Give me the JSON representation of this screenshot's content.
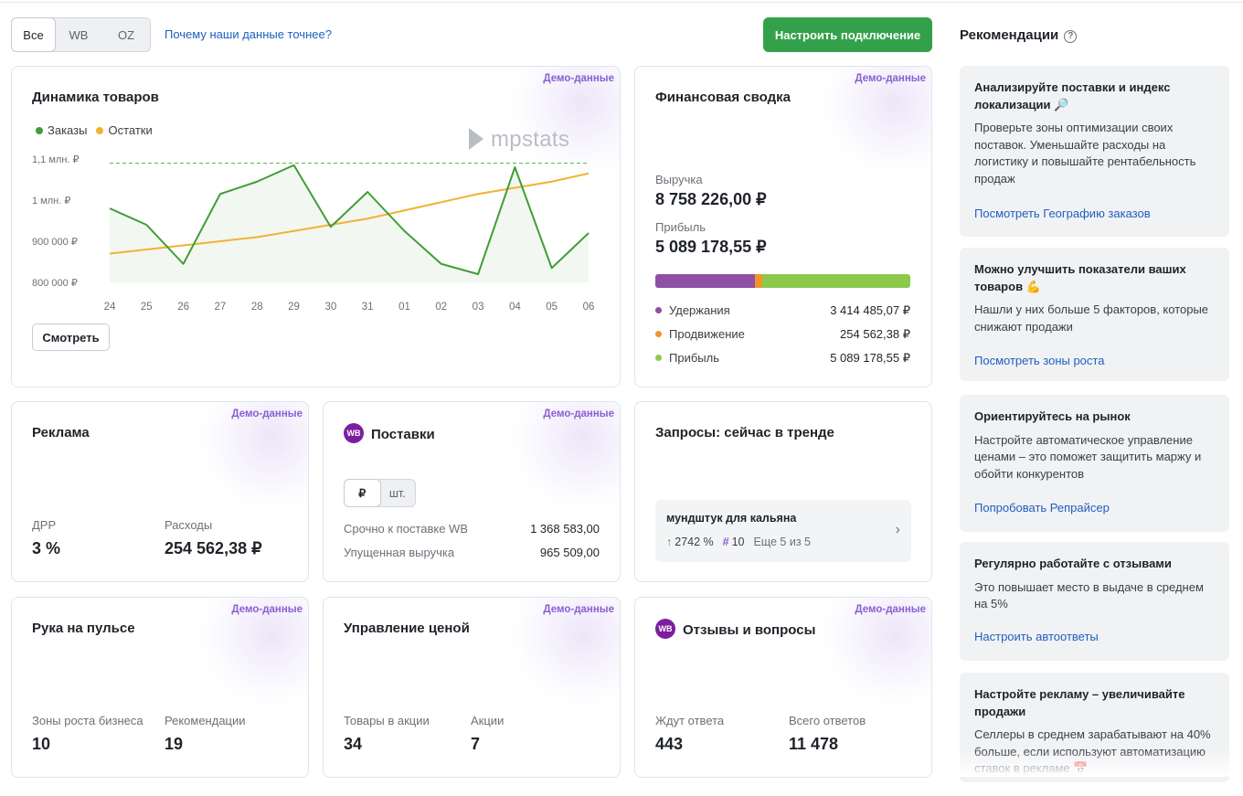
{
  "filters": {
    "tabs": [
      "Все",
      "WB",
      "OZ"
    ],
    "active": "Все"
  },
  "why_link": "Почему наши данные точнее?",
  "connect_button": "Настроить подключение",
  "demo_label": "Демо-данные",
  "dynamics": {
    "title": "Динамика товаров",
    "legend": {
      "orders": "Заказы",
      "stock": "Остатки"
    },
    "watermark": "mpstats",
    "view_button": "Смотреть",
    "colors": {
      "orders": "#3f9e35",
      "stock": "#f2b233"
    }
  },
  "chart_data": {
    "type": "line",
    "x": [
      "24",
      "25",
      "26",
      "27",
      "28",
      "29",
      "30",
      "31",
      "01",
      "02",
      "03",
      "04",
      "05",
      "06"
    ],
    "y_ticks": [
      "1,1 млн. ₽",
      "1 млн. ₽",
      "900 000 ₽",
      "800 000 ₽"
    ],
    "y_tick_values": [
      1100000,
      1000000,
      900000,
      800000
    ],
    "ylim": [
      800000,
      1100000
    ],
    "reference_line": 1090000,
    "series": [
      {
        "name": "Заказы",
        "values": [
          980000,
          940000,
          845000,
          1015000,
          1045000,
          1085000,
          935000,
          1020000,
          925000,
          845000,
          820000,
          1080000,
          835000,
          920000
        ]
      },
      {
        "name": "Остатки",
        "values": [
          870000,
          880000,
          890000,
          900000,
          910000,
          925000,
          940000,
          955000,
          975000,
          995000,
          1015000,
          1030000,
          1045000,
          1065000
        ]
      }
    ]
  },
  "finance": {
    "title": "Финансовая сводка",
    "revenue_label": "Выручка",
    "revenue": "8 758 226,00 ₽",
    "profit_label": "Прибыль",
    "profit": "5 089 178,55 ₽",
    "breakdown": [
      {
        "name": "Удержания",
        "value": "3 414 485,07 ₽",
        "share": 0.39,
        "color": "#8e4fa6"
      },
      {
        "name": "Продвижение",
        "value": "254 562,38 ₽",
        "share": 0.029,
        "color": "#f0952a"
      },
      {
        "name": "Прибыль",
        "value": "5 089 178,55 ₽",
        "share": 0.581,
        "color": "#8cc94b"
      }
    ]
  },
  "ads": {
    "title": "Реклама",
    "drr_label": "ДРР",
    "drr": "3 %",
    "spend_label": "Расходы",
    "spend": "254 562,38 ₽"
  },
  "supplies": {
    "badge": "WB",
    "title": "Поставки",
    "units": [
      "₽",
      "шт."
    ],
    "rows": [
      {
        "name": "Срочно к поставке WB",
        "value": "1 368 583,00"
      },
      {
        "name": "Упущенная выручка",
        "value": "965 509,00"
      }
    ]
  },
  "trends": {
    "title": "Запросы: сейчас в тренде",
    "query": "мундштук для кальяна",
    "growth": "2742 %",
    "rank": "10",
    "more": "Еще 5 из 5"
  },
  "pulse": {
    "title": "Рука на пульсе",
    "zones_label": "Зоны роста бизнеса",
    "zones": "10",
    "recs_label": "Рекомендации",
    "recs": "19"
  },
  "pricing": {
    "title": "Управление ценой",
    "promo_items_label": "Товары в акции",
    "promo_items": "34",
    "promos_label": "Акции",
    "promos": "7"
  },
  "reviews": {
    "badge": "WB",
    "title": "Отзывы и вопросы",
    "waiting_label": "Ждут ответа",
    "waiting": "443",
    "total_label": "Всего ответов",
    "total": "11 478"
  },
  "recommendations": {
    "title": "Рекомендации",
    "help": "?",
    "items": [
      {
        "title": "Анализируйте поставки и индекс локализации 🔎",
        "text": "Проверьте зоны оптимизации своих поставок. Уменьшайте расходы на логистику и повышайте рентабельность продаж",
        "link": "Посмотреть Географию заказов"
      },
      {
        "title": "Можно улучшить показатели ваших товаров 💪",
        "text": "Нашли у них больше 5 факторов, которые снижают продажи",
        "link": "Посмотреть зоны роста"
      },
      {
        "title": "Ориентируйтесь на рынок",
        "text": "Настройте автоматическое управление ценами – это поможет защитить маржу и обойти конкурентов",
        "link": "Попробовать Репрайсер"
      },
      {
        "title": "Регулярно работайте с отзывами",
        "text": "Это повышает место в выдаче в среднем на 5%",
        "link": "Настроить автоответы"
      },
      {
        "title": "Настройте рекламу – увеличивайте продажи",
        "text": "Селлеры в среднем зарабатывают на 40% больше, если используют автоматизацию ставок в рекламе 📅",
        "link": ""
      }
    ]
  }
}
